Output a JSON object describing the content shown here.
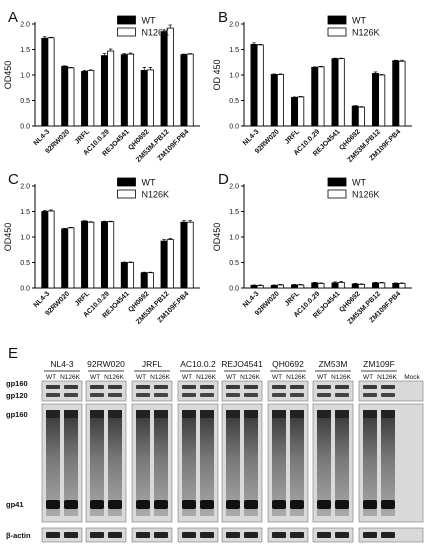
{
  "chart_data": [
    {
      "panel": "A",
      "type": "bar",
      "ylabel": "OD450",
      "ylim": [
        0,
        2.0
      ],
      "yticks": [
        0.0,
        0.5,
        1.0,
        1.5,
        2.0
      ],
      "categories": [
        "NL4-3",
        "92RW020",
        "JRFL",
        "AC10.0.29",
        "REJO4541",
        "QH0692",
        "ZM53M.PB12",
        "ZM109F.PB4"
      ],
      "series": [
        {
          "name": "WT",
          "color": "#000000",
          "values": [
            1.72,
            1.17,
            1.07,
            1.38,
            1.4,
            1.09,
            1.85,
            1.4
          ],
          "errors": [
            0.03,
            0.01,
            0.02,
            0.04,
            0.02,
            0.06,
            0.03,
            0.01
          ]
        },
        {
          "name": "N126K",
          "color": "#ffffff",
          "values": [
            1.73,
            1.14,
            1.09,
            1.47,
            1.41,
            1.1,
            1.92,
            1.41
          ],
          "errors": [
            0.01,
            0.01,
            0.01,
            0.04,
            0.02,
            0.05,
            0.06,
            0.01
          ]
        }
      ],
      "legend": "top-right"
    },
    {
      "panel": "B",
      "type": "bar",
      "ylabel": "OD 450",
      "ylim": [
        0,
        2.0
      ],
      "yticks": [
        0.0,
        0.5,
        1.0,
        1.5,
        2.0
      ],
      "categories": [
        "NL4-3",
        "92RW020",
        "JRFL",
        "AC10.0.29",
        "REJO4541",
        "QH0692",
        "ZM53M.PB12",
        "ZM109F.PB4"
      ],
      "series": [
        {
          "name": "WT",
          "color": "#000000",
          "values": [
            1.6,
            1.01,
            0.56,
            1.15,
            1.32,
            0.39,
            1.03,
            1.28
          ],
          "errors": [
            0.03,
            0.01,
            0.01,
            0.01,
            0.01,
            0.01,
            0.03,
            0.01
          ]
        },
        {
          "name": "N126K",
          "color": "#ffffff",
          "values": [
            1.59,
            1.01,
            0.57,
            1.16,
            1.32,
            0.37,
            1.0,
            1.27
          ],
          "errors": [
            0.01,
            0.01,
            0.01,
            0.01,
            0.01,
            0.01,
            0.01,
            0.02
          ]
        }
      ],
      "legend": "top-right"
    },
    {
      "panel": "C",
      "type": "bar",
      "ylabel": "OD450",
      "ylim": [
        0,
        2.0
      ],
      "yticks": [
        0.0,
        0.5,
        1.0,
        1.5,
        2.0
      ],
      "categories": [
        "NL4-3",
        "92RW020",
        "JRFL",
        "AC10.0.29",
        "REJO4541",
        "QH0692",
        "ZM53M.PB12",
        "ZM109F.PB4"
      ],
      "series": [
        {
          "name": "WT",
          "color": "#000000",
          "values": [
            1.5,
            1.16,
            1.31,
            1.3,
            0.5,
            0.3,
            0.92,
            1.29
          ],
          "errors": [
            0.02,
            0.01,
            0.01,
            0.01,
            0.01,
            0.01,
            0.03,
            0.03
          ]
        },
        {
          "name": "N126K",
          "color": "#ffffff",
          "values": [
            1.51,
            1.18,
            1.29,
            1.3,
            0.5,
            0.3,
            0.95,
            1.29
          ],
          "errors": [
            0.02,
            0.01,
            0.01,
            0.01,
            0.01,
            0.01,
            0.02,
            0.03
          ]
        }
      ],
      "legend": "top-right"
    },
    {
      "panel": "D",
      "type": "bar",
      "ylabel": "OD450",
      "ylim": [
        0,
        2.0
      ],
      "yticks": [
        0.0,
        0.5,
        1.0,
        1.5,
        2.0
      ],
      "categories": [
        "NL4-3",
        "92RW020",
        "JRFL",
        "AC10.0.29",
        "REJO4541",
        "QH0692",
        "ZM53M.PB12",
        "ZM109F.PB4"
      ],
      "series": [
        {
          "name": "WT",
          "color": "#000000",
          "values": [
            0.05,
            0.05,
            0.06,
            0.1,
            0.1,
            0.08,
            0.1,
            0.09
          ],
          "errors": [
            0.01,
            0.01,
            0.01,
            0.01,
            0.02,
            0.01,
            0.01,
            0.01
          ]
        },
        {
          "name": "N126K",
          "color": "#ffffff",
          "values": [
            0.05,
            0.06,
            0.06,
            0.09,
            0.11,
            0.07,
            0.1,
            0.09
          ],
          "errors": [
            0.01,
            0.01,
            0.01,
            0.01,
            0.02,
            0.01,
            0.01,
            0.01
          ]
        }
      ],
      "legend": "top-right"
    }
  ],
  "blot": {
    "panel": "E",
    "groups": [
      "NL4-3",
      "92RW020",
      "JRFL",
      "AC10.0.2",
      "REJO4541",
      "QH0692",
      "ZM53M",
      "ZM109F"
    ],
    "lane_labels": [
      "WT",
      "N126K"
    ],
    "mock_label": "Mock",
    "row_labels": [
      "gp160",
      "gp120",
      "gp160",
      "gp41",
      "β-actin"
    ]
  }
}
